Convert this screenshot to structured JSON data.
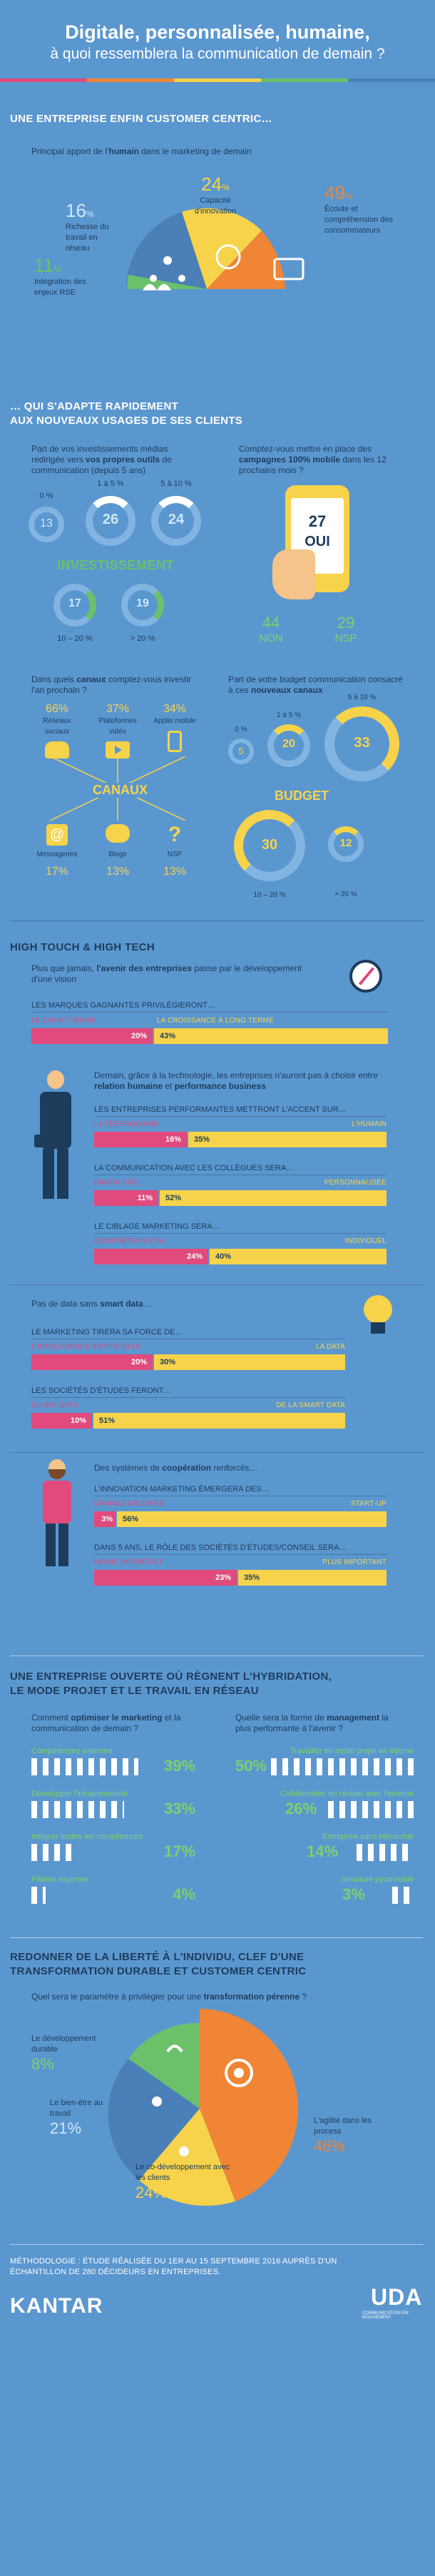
{
  "header": {
    "title_line1": "Digitale, personnalisée, humaine,",
    "title_line2": "à quoi ressemblera la communication de demain ?"
  },
  "s1": {
    "title": "UNE ENTREPRISE ENFIN CUSTOMER CENTRIC…",
    "intro_a": "Principal apport de l'",
    "intro_b": "humain",
    "intro_c": " dans le marketing de demain",
    "slices": [
      {
        "pct": "24",
        "label": "Capacité d'innovation",
        "color": "#f6d34a"
      },
      {
        "pct": "49",
        "label": "Écoute et compréhension des consommateurs",
        "color": "#f08535"
      },
      {
        "pct": "16",
        "label": "Richesse du travail en réseau",
        "color": "#4b7fb7"
      },
      {
        "pct": "11",
        "label": "Intégration des enjeux RSE",
        "color": "#6cc06a"
      }
    ]
  },
  "s2": {
    "title_1": "… QUI S'ADAPTE RAPIDEMENT",
    "title_2": "AUX NOUVEAUX USAGES DE SES CLIENTS",
    "q1_a": "Part de vos investissements médias redirigée vers ",
    "q1_b": "vos propres outils",
    "q1_c": " de communication (depuis 5 ans)",
    "q1_items": [
      {
        "label": "0 %",
        "value": "13"
      },
      {
        "label": "1 à 5 %",
        "value": "26"
      },
      {
        "label": "5 à 10 %",
        "value": "24"
      },
      {
        "label": "10 – 20 %",
        "value": "17"
      },
      {
        "label": "> 20 %",
        "value": "19"
      }
    ],
    "investissement": "INVESTISSEMENT",
    "q2_a": "Comptez-vous mettre en place des ",
    "q2_b": "campagnes 100% mobile",
    "q2_c": " dans les 12 prochains mois ?",
    "oui_value": "27",
    "oui_label": "OUI",
    "non_value": "44",
    "non_label": "NON",
    "nsp_value": "29",
    "nsp_label": "NSP",
    "q3_a": "Dans quels ",
    "q3_b": "canaux",
    "q3_c": " comptez-vous investir l'an prochain ?",
    "canaux_top": [
      {
        "value": "66",
        "label": "Réseaux sociaux",
        "icon": "people-icon"
      },
      {
        "value": "37",
        "label": "Plateformes vidéo",
        "icon": "play-icon"
      },
      {
        "value": "34",
        "label": "Applis mobile",
        "icon": "mobile-icon"
      }
    ],
    "canaux": "CANAUX",
    "canaux_bottom": [
      {
        "value": "17",
        "label": "Messageries",
        "icon": "at-icon"
      },
      {
        "value": "13",
        "label": "Blogs",
        "icon": "chat-icon"
      },
      {
        "value": "13",
        "label": "NSP",
        "icon": "question-icon"
      }
    ],
    "q4_a": "Part de votre budget communication consacré à ces ",
    "q4_b": "nouveaux canaux",
    "q4_items": [
      {
        "label": "0 %",
        "value": "5"
      },
      {
        "label": "1 à 5 %",
        "value": "20"
      },
      {
        "label": "5 à 10 %",
        "value": "33"
      },
      {
        "label": "10 – 20 %",
        "value": "30"
      },
      {
        "label": "> 20 %",
        "value": "12"
      }
    ],
    "budget": "BUDGET"
  },
  "s3": {
    "title": "HIGH TOUCH & HIGH TECH",
    "intro_a": "Plus que jamais, ",
    "intro_b": "l'avenir des entreprises",
    "intro_c": " passe par le développement d'une vision",
    "q1": "LES MARQUES GAGNANTES PRIVILÉGIERONT…",
    "q1_left": "LE COURT TERME",
    "q1_right": "LA CROISSANCE À LONG TERME",
    "q1_lv": "20%",
    "q1_rv": "43%",
    "intro2_a": "Demain, grâce à la technologie, les entreprises n'auront pas à choisir entre ",
    "intro2_b": "relation humaine",
    "intro2_c": " et ",
    "intro2_d": "performance business",
    "q2": "LES ENTREPRISES PERFORMANTES METTRONT L'ACCENT SUR…",
    "q2_left": "LA TECHNOLOGIE",
    "q2_right": "L'HUMAIN",
    "q2_lv": "16%",
    "q2_rv": "35%",
    "q3": "LA COMMUNICATION AVEC LES COLLÈGUES SERA…",
    "q3_left": "DIGITALISÉE",
    "q3_right": "PERSONNALISÉE",
    "q3_lv": "11%",
    "q3_rv": "52%",
    "q4": "LE CIBLAGE MARKETING SERA…",
    "q4_left": "COMPORTEMENTAL",
    "q4_right": "INDIVIDUEL",
    "q4_lv": "24%",
    "q4_rv": "40%",
    "intro3_a": "Pas de data sans ",
    "intro3_b": "smart data",
    "intro3_c": "…",
    "q5": "LE MARKETING TIRERA SA FORCE DE…",
    "q5_left": "L'INTELLIGENCE ARTIFICIELLE",
    "q5_right": "LA DATA",
    "q5_lv": "20%",
    "q5_rv": "30%",
    "q6": "LES SOCIÉTÉS D'ÉTUDES FERONT…",
    "q6_left": "DU BIG DATA",
    "q6_right": "DE LA SMART DATA",
    "q6_lv": "10%",
    "q6_rv": "51%",
    "intro4_a": "Des systèmes de ",
    "intro4_b": "coopération",
    "intro4_c": " renforcés…",
    "q7": "L'INNOVATION MARKETING ÉMERGERA DES…",
    "q7_left": "GRANDS GROUPES",
    "q7_right": "START-UP",
    "q7_lv": "3%",
    "q7_rv": "56%",
    "q8": "DANS 5 ANS, LE RÔLE DES SOCIÉTÉS D'ÉTUDES/CONSEIL SERA…",
    "q8_left": "MOINS IMPORTANT",
    "q8_right": "PLUS IMPORTANT",
    "q8_lv": "23%",
    "q8_rv": "35%"
  },
  "s4": {
    "title_1": "UNE ENTREPRISE OUVERTE OÙ RÈGNENT L'HYBRIDATION,",
    "title_2": "LE MODE PROJET ET LE TRAVAIL EN RÉSEAU",
    "left_q_a": "Comment ",
    "left_q_b": "optimiser le marketing",
    "left_q_c": " et la communication de demain ?",
    "left": [
      {
        "label": "Compétences externes",
        "value": "39"
      },
      {
        "label": "Développer l'intrapreneuriat",
        "value": "33"
      },
      {
        "label": "Intégrer toutes les compétences",
        "value": "17"
      },
      {
        "label": "Filiales expertes",
        "value": "4"
      }
    ],
    "right_q_a": "Quelle sera la forme de ",
    "right_q_b": "management",
    "right_q_c": " la plus performante à l'avenir ?",
    "right": [
      {
        "label": "Travailler en mode projet en interne",
        "value": "50"
      },
      {
        "label": "Collaboration en réseau avec l'externe",
        "value": "26"
      },
      {
        "label": "Entreprise sans hiérarchie",
        "value": "14"
      },
      {
        "label": "Structure pyramidale",
        "value": "3"
      }
    ]
  },
  "s5": {
    "title_1": "REDONNER DE LA LIBERTÉ À L'INDIVIDU, CLEF D'UNE",
    "title_2": "TRANSFORMATION DURABLE ET CUSTOMER CENTRIC",
    "q_a": "Quel sera le paramètre à privilégier pour une ",
    "q_b": "transformation pérenne",
    "q_c": " ?",
    "slices": [
      {
        "label": "Le développement durable",
        "value": "8",
        "color": "#6cc06a"
      },
      {
        "label": "Le bien-être au travail",
        "value": "21",
        "color": "#4b7fb7"
      },
      {
        "label": "Le co-développement avec les clients",
        "value": "24",
        "color": "#f6d34a"
      },
      {
        "label": "L'agilité dans les process",
        "value": "46",
        "color": "#f08535"
      }
    ]
  },
  "footer": {
    "methodology_1": "MÉTHODOLOGIE : ÉTUDE RÉALISÉE DU 1ER AU 15 SEPTEMBRE 2016 AUPRÈS D'UN",
    "methodology_2": "ÉCHANTILLON DE 280 DÉCIDEURS EN ENTREPRISES.",
    "kantar": "KANTAR",
    "uda": "UDA",
    "uda_sub": "COMMUNICATION EN MOUVEMENT"
  },
  "colors": {
    "bg": "#5b97cf",
    "pink": "#e04a7c",
    "yellow": "#f6d34a",
    "orange": "#f08535",
    "green": "#6cc06a",
    "dark": "#1d3c5c"
  }
}
